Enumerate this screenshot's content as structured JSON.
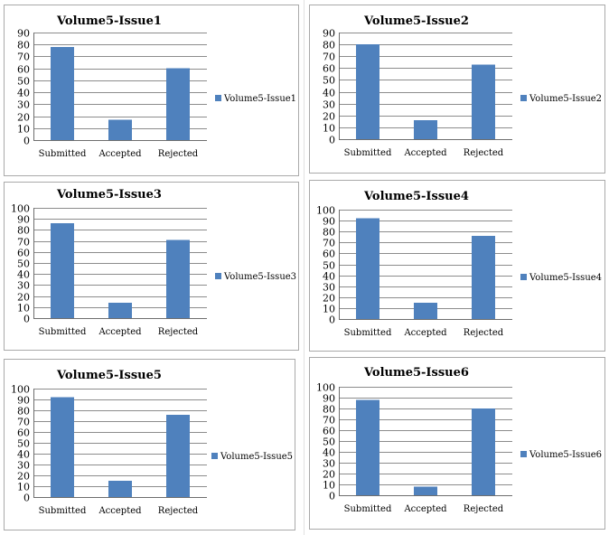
{
  "bar_color": "#4f81bd",
  "chart_data": [
    {
      "type": "bar",
      "title": "Volume5-Issue1",
      "categories": [
        "Submitted",
        "Accepted",
        "Rejected"
      ],
      "series": [
        {
          "name": "Volume5-Issue1",
          "values": [
            78,
            17,
            60
          ]
        }
      ],
      "xlabel": "",
      "ylabel": "",
      "ylim": [
        0,
        90
      ],
      "yticks": [
        "0",
        "10",
        "20",
        "30",
        "40",
        "50",
        "60",
        "70",
        "80",
        "90"
      ],
      "grid": true,
      "legend": "right"
    },
    {
      "type": "bar",
      "title": "Volume5-Issue2",
      "categories": [
        "Submitted",
        "Accepted",
        "Rejected"
      ],
      "series": [
        {
          "name": "Volume5-Issue2",
          "values": [
            80,
            16,
            63
          ]
        }
      ],
      "xlabel": "",
      "ylabel": "",
      "ylim": [
        0,
        90
      ],
      "yticks": [
        "0",
        "10",
        "20",
        "30",
        "40",
        "50",
        "60",
        "70",
        "80",
        "90"
      ],
      "grid": true,
      "legend": "right"
    },
    {
      "type": "bar",
      "title": "Volume5-Issue3",
      "categories": [
        "Submitted",
        "Accepted",
        "Rejected"
      ],
      "series": [
        {
          "name": "Volume5-Issue3",
          "values": [
            86,
            14,
            71
          ]
        }
      ],
      "xlabel": "",
      "ylabel": "",
      "ylim": [
        0,
        100
      ],
      "yticks": [
        "0",
        "10",
        "20",
        "30",
        "40",
        "50",
        "60",
        "70",
        "80",
        "90",
        "100"
      ],
      "grid": true,
      "legend": "right"
    },
    {
      "type": "bar",
      "title": "Volume5-Issue4",
      "categories": [
        "Submitted",
        "Accepted",
        "Rejected"
      ],
      "series": [
        {
          "name": "Volume5-Issue4",
          "values": [
            92,
            15,
            76
          ]
        }
      ],
      "xlabel": "",
      "ylabel": "",
      "ylim": [
        0,
        100
      ],
      "yticks": [
        "0",
        "10",
        "20",
        "30",
        "40",
        "50",
        "60",
        "70",
        "80",
        "90",
        "100"
      ],
      "grid": true,
      "legend": "right"
    },
    {
      "type": "bar",
      "title": "Volume5-Issue5",
      "categories": [
        "Submitted",
        "Accepted",
        "Rejected"
      ],
      "series": [
        {
          "name": "Volume5-Issue5",
          "values": [
            92,
            15,
            76
          ]
        }
      ],
      "xlabel": "",
      "ylabel": "",
      "ylim": [
        0,
        100
      ],
      "yticks": [
        "0",
        "10",
        "20",
        "30",
        "40",
        "50",
        "60",
        "70",
        "80",
        "90",
        "100"
      ],
      "grid": true,
      "legend": "right"
    },
    {
      "type": "bar",
      "title": "Volume5-Issue6",
      "categories": [
        "Submitted",
        "Accepted",
        "Rejected"
      ],
      "series": [
        {
          "name": "Volume5-Issue6",
          "values": [
            88,
            8,
            80
          ]
        }
      ],
      "xlabel": "",
      "ylabel": "",
      "ylim": [
        0,
        100
      ],
      "yticks": [
        "0",
        "10",
        "20",
        "30",
        "40",
        "50",
        "60",
        "70",
        "80",
        "90",
        "100"
      ],
      "grid": true,
      "legend": "right"
    }
  ]
}
